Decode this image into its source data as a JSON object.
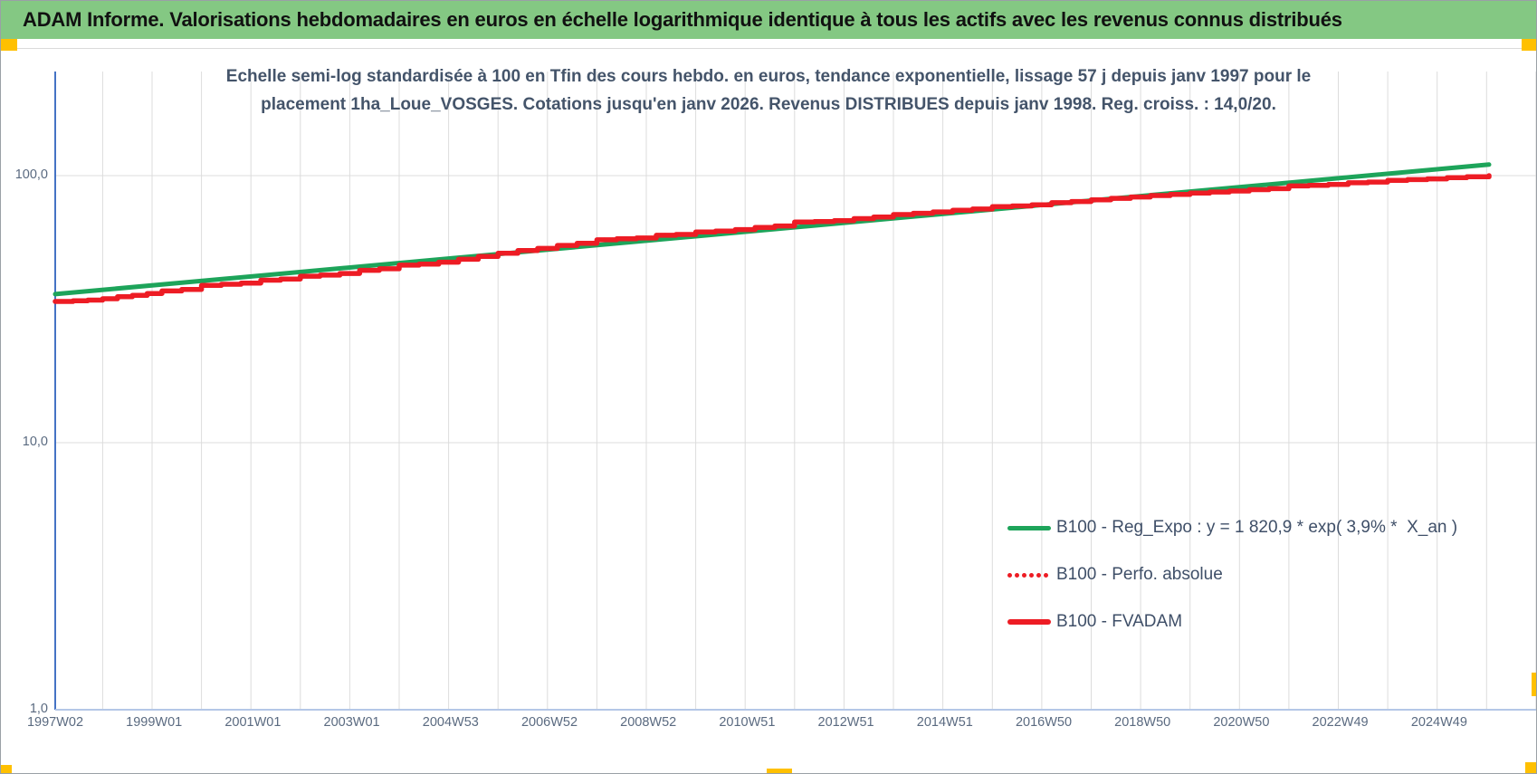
{
  "header": {
    "title": "ADAM Informe. Valorisations hebdomadaires en euros en échelle logarithmique identique à tous les actifs avec les revenus connus distribués"
  },
  "subtitle": {
    "line1": "Echelle semi-log standardisée à 100 en Tfin des cours hebdo. en euros, tendance exponentielle, lissage 57 j depuis janv 1997 pour le",
    "line2": "placement 1ha_Loue_VOSGES. Cotations jusqu'en janv 2026. Revenus DISTRIBUES depuis janv 1998. Reg. croiss. : 14,0/20."
  },
  "legend": {
    "items": [
      {
        "label": "B100 - Reg_Expo : y = 1 820,9 * exp( 3,9% *  X_an )",
        "marker": "green-solid-line"
      },
      {
        "label": "B100 - Perfo. absolue",
        "marker": "red-dotted-line"
      },
      {
        "label": "B100 - FVADAM",
        "marker": "red-solid-line"
      }
    ]
  },
  "colors": {
    "header_bg": "#84c883",
    "green_line": "#1da45a",
    "red_line": "#ed1c24",
    "subtitle_text": "#44546a",
    "tick_text": "#5a6a80",
    "gridline": "#dcdcdc",
    "y_axis_line": "#4472c4",
    "x_axis_line": "#b4c7e7",
    "accent_orange": "#ffc000"
  },
  "chart_data": {
    "type": "line",
    "y_scale": "log10",
    "ylim": [
      1,
      250
    ],
    "grid": "both",
    "legend_position": "inside-right-lower",
    "y_ticks": [
      {
        "label": "100,0",
        "value": 100
      },
      {
        "label": "10,0",
        "value": 10
      },
      {
        "label": "1,0",
        "value": 1
      }
    ],
    "x_years_range": [
      1997.04,
      2026.05
    ],
    "x_ticks": [
      {
        "label": "1997W02",
        "year": 1997.04
      },
      {
        "label": "1999W01",
        "year": 1999.04
      },
      {
        "label": "2001W01",
        "year": 2001.04
      },
      {
        "label": "2003W01",
        "year": 2003.04
      },
      {
        "label": "2004W53",
        "year": 2005.04
      },
      {
        "label": "2006W52",
        "year": 2007.04
      },
      {
        "label": "2008W52",
        "year": 2009.04
      },
      {
        "label": "2010W51",
        "year": 2011.04
      },
      {
        "label": "2012W51",
        "year": 2013.04
      },
      {
        "label": "2014W51",
        "year": 2015.04
      },
      {
        "label": "2016W50",
        "year": 2017.04
      },
      {
        "label": "2018W50",
        "year": 2019.04
      },
      {
        "label": "2020W50",
        "year": 2021.04
      },
      {
        "label": "2022W49",
        "year": 2023.04
      },
      {
        "label": "2024W49",
        "year": 2025.04
      }
    ],
    "series": [
      {
        "id": "reg-expo",
        "name": "B100 - Reg_Expo",
        "equation": "y = 1 820,9 * exp( 3,9% * X_an )",
        "color": "#1da45a",
        "style": "solid",
        "width": 5,
        "render": "log-linear",
        "points": [
          [
            1997.04,
            36.0
          ],
          [
            2026.05,
            110.0
          ]
        ]
      },
      {
        "id": "perfo-absolue",
        "name": "B100 - Perfo. absolue",
        "color": "#ed1c24",
        "style": "dotted",
        "width": 5,
        "render": "step",
        "points_same_as": "B100 - FVADAM",
        "note": "hidden exactly beneath FVADAM line"
      },
      {
        "id": "fvadam",
        "name": "B100 - FVADAM",
        "color": "#ed1c24",
        "style": "solid",
        "width": 5.5,
        "render": "step",
        "points": [
          [
            1997.04,
            33.8
          ],
          [
            1997.4,
            34.0
          ],
          [
            1997.7,
            34.2
          ],
          [
            1998.0,
            34.6
          ],
          [
            1998.3,
            35.2
          ],
          [
            1998.6,
            35.6
          ],
          [
            1998.9,
            36.2
          ],
          [
            1999.2,
            37.0
          ],
          [
            1999.6,
            37.5
          ],
          [
            2000.0,
            38.8
          ],
          [
            2000.4,
            39.2
          ],
          [
            2000.8,
            39.6
          ],
          [
            2001.2,
            40.6
          ],
          [
            2001.6,
            41.0
          ],
          [
            2002.0,
            42.0
          ],
          [
            2002.4,
            42.4
          ],
          [
            2002.8,
            43.0
          ],
          [
            2003.2,
            44.2
          ],
          [
            2003.6,
            44.8
          ],
          [
            2004.0,
            46.2
          ],
          [
            2004.4,
            46.6
          ],
          [
            2004.8,
            47.4
          ],
          [
            2005.2,
            48.6
          ],
          [
            2005.6,
            49.8
          ],
          [
            2006.0,
            51.2
          ],
          [
            2006.4,
            52.4
          ],
          [
            2006.8,
            53.4
          ],
          [
            2007.2,
            54.8
          ],
          [
            2007.6,
            55.8
          ],
          [
            2008.0,
            57.5
          ],
          [
            2008.4,
            58.0
          ],
          [
            2008.8,
            58.4
          ],
          [
            2009.2,
            59.8
          ],
          [
            2009.6,
            60.2
          ],
          [
            2010.0,
            61.5
          ],
          [
            2010.4,
            62.0
          ],
          [
            2010.8,
            62.8
          ],
          [
            2011.2,
            64.0
          ],
          [
            2011.6,
            64.8
          ],
          [
            2012.0,
            67.0
          ],
          [
            2012.4,
            67.3
          ],
          [
            2012.8,
            67.8
          ],
          [
            2013.2,
            69.0
          ],
          [
            2013.6,
            70.0
          ],
          [
            2014.0,
            71.5
          ],
          [
            2014.4,
            72.3
          ],
          [
            2014.8,
            73.1
          ],
          [
            2015.2,
            74.2
          ],
          [
            2015.6,
            75.0
          ],
          [
            2016.0,
            76.5
          ],
          [
            2016.4,
            77.0
          ],
          [
            2016.8,
            77.8
          ],
          [
            2017.2,
            79.2
          ],
          [
            2017.6,
            80.0
          ],
          [
            2018.0,
            81.2
          ],
          [
            2018.4,
            82.2
          ],
          [
            2018.8,
            83.2
          ],
          [
            2019.2,
            84.2
          ],
          [
            2019.6,
            85.0
          ],
          [
            2020.0,
            86.0
          ],
          [
            2020.4,
            86.8
          ],
          [
            2020.8,
            87.6
          ],
          [
            2021.2,
            88.6
          ],
          [
            2021.6,
            89.4
          ],
          [
            2022.0,
            91.5
          ],
          [
            2022.4,
            92.0
          ],
          [
            2022.8,
            92.6
          ],
          [
            2023.2,
            94.0
          ],
          [
            2023.6,
            94.6
          ],
          [
            2024.0,
            96.0
          ],
          [
            2024.4,
            96.6
          ],
          [
            2024.8,
            97.2
          ],
          [
            2025.2,
            98.2
          ],
          [
            2025.6,
            99.0
          ],
          [
            2026.05,
            100.0
          ]
        ]
      }
    ]
  }
}
